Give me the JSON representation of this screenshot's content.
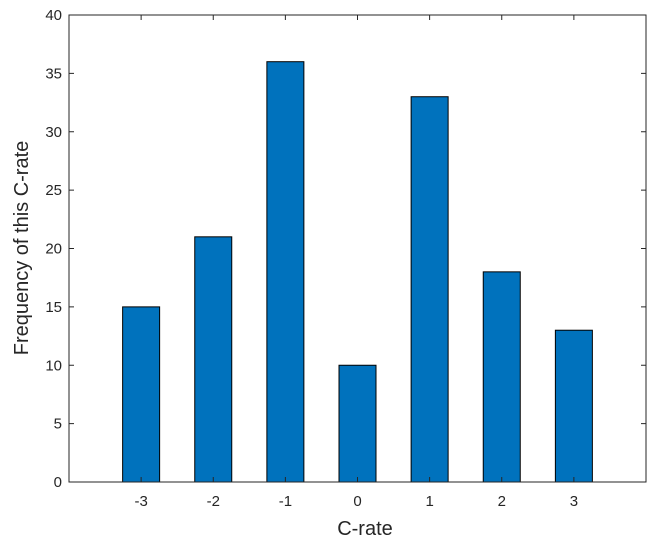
{
  "chart_data": {
    "type": "bar",
    "categories": [
      "-3",
      "-2",
      "-1",
      "0",
      "1",
      "2",
      "3"
    ],
    "values": [
      15,
      21,
      36,
      10,
      33,
      18,
      13
    ],
    "title": "",
    "xlabel": "C-rate",
    "ylabel": "Frequency of this C-rate",
    "ylim": [
      0,
      40
    ],
    "yticks": [
      0,
      5,
      10,
      15,
      20,
      25,
      30,
      35,
      40
    ],
    "grid": false,
    "bar_color": "#0072bd",
    "bar_edge_color": "#000000"
  }
}
